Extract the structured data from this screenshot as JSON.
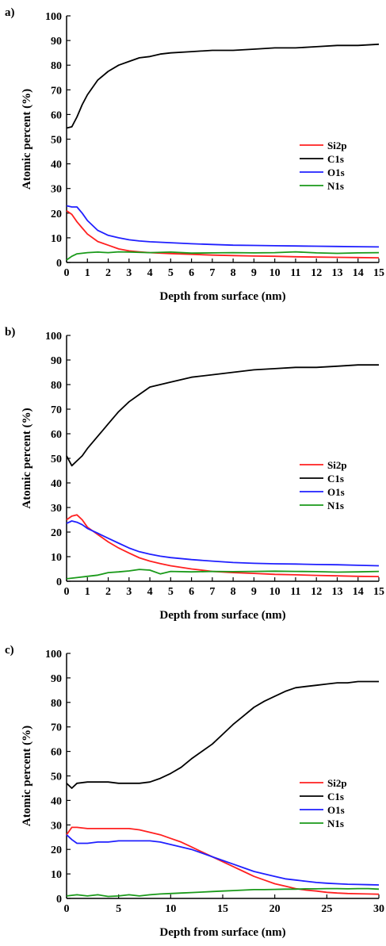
{
  "chart_data": [
    {
      "type": "line",
      "panel_label": "a)",
      "xlabel": "Depth from surface (nm)",
      "ylabel": "Atomic percent (%)",
      "xlim": [
        0,
        15
      ],
      "ylim": [
        0,
        100
      ],
      "xticks": [
        0,
        1,
        2,
        3,
        4,
        5,
        6,
        7,
        8,
        9,
        10,
        11,
        12,
        13,
        14,
        15
      ],
      "yticks": [
        0,
        10,
        20,
        30,
        40,
        50,
        60,
        70,
        80,
        90,
        100
      ],
      "grid": false,
      "legend_position": "center-right",
      "series": [
        {
          "name": "Si2p",
          "color": "#ff2020",
          "x": [
            0,
            0.25,
            0.5,
            0.75,
            1,
            1.5,
            2,
            2.5,
            3,
            3.5,
            4,
            5,
            6,
            7,
            8,
            9,
            10,
            11,
            12,
            13,
            14,
            15
          ],
          "y": [
            21,
            19.5,
            16.5,
            14,
            11.5,
            8.5,
            7,
            5.5,
            4.7,
            4.3,
            4,
            3.6,
            3.3,
            3,
            2.8,
            2.6,
            2.5,
            2.3,
            2.2,
            2.1,
            2,
            1.9
          ]
        },
        {
          "name": "C1s",
          "color": "#000000",
          "x": [
            0,
            0.25,
            0.5,
            0.75,
            1,
            1.5,
            2,
            2.5,
            3,
            3.5,
            4,
            4.5,
            5,
            6,
            7,
            8,
            9,
            10,
            11,
            12,
            13,
            14,
            15
          ],
          "y": [
            54.5,
            55,
            59,
            64,
            68,
            74,
            77.5,
            80,
            81.5,
            83,
            83.5,
            84.5,
            85,
            85.5,
            86,
            86,
            86.5,
            87,
            87,
            87.5,
            88,
            88,
            88.5
          ]
        },
        {
          "name": "O1s",
          "color": "#2020ff",
          "x": [
            0,
            0.25,
            0.5,
            0.75,
            1,
            1.5,
            2,
            2.5,
            3,
            3.5,
            4,
            5,
            6,
            7,
            8,
            9,
            10,
            11,
            12,
            13,
            14,
            15
          ],
          "y": [
            23,
            22.5,
            22.5,
            20,
            17,
            13,
            11,
            10,
            9.2,
            8.7,
            8.4,
            8,
            7.6,
            7.3,
            7,
            6.9,
            6.8,
            6.7,
            6.6,
            6.5,
            6.4,
            6.3
          ]
        },
        {
          "name": "N1s",
          "color": "#1a9a1a",
          "x": [
            0,
            0.25,
            0.5,
            1,
            1.5,
            2,
            2.5,
            3,
            4,
            5,
            6,
            7,
            8,
            9,
            10,
            11,
            12,
            13,
            14,
            15
          ],
          "y": [
            1,
            2.5,
            3.5,
            4,
            4.2,
            4,
            4.3,
            4.2,
            4,
            4.2,
            3.8,
            3.9,
            4,
            3.9,
            4,
            4.3,
            3.9,
            3.7,
            3.9,
            4
          ]
        }
      ]
    },
    {
      "type": "line",
      "panel_label": "b)",
      "xlabel": "Depth from surface (nm)",
      "ylabel": "Atomic percent (%)",
      "xlim": [
        0,
        15
      ],
      "ylim": [
        0,
        100
      ],
      "xticks": [
        0,
        1,
        2,
        3,
        4,
        5,
        6,
        7,
        8,
        9,
        10,
        11,
        12,
        13,
        14,
        15
      ],
      "yticks": [
        0,
        10,
        20,
        30,
        40,
        50,
        60,
        70,
        80,
        90,
        100
      ],
      "grid": false,
      "legend_position": "center-right",
      "series": [
        {
          "name": "Si2p",
          "color": "#ff2020",
          "x": [
            0,
            0.25,
            0.5,
            0.75,
            1,
            1.5,
            2,
            2.5,
            3,
            3.5,
            4,
            4.5,
            5,
            6,
            7,
            8,
            9,
            10,
            11,
            12,
            13,
            14,
            15
          ],
          "y": [
            25,
            26.5,
            27,
            25,
            22,
            19,
            16,
            13.5,
            11.5,
            9.5,
            8.2,
            7.2,
            6.3,
            5,
            4,
            3.5,
            3.2,
            2.8,
            2.6,
            2.4,
            2.2,
            2,
            1.9
          ]
        },
        {
          "name": "C1s",
          "color": "#000000",
          "x": [
            0,
            0.25,
            0.5,
            0.75,
            1,
            1.5,
            2,
            2.5,
            3,
            3.5,
            4,
            4.5,
            5,
            6,
            7,
            8,
            9,
            10,
            11,
            12,
            13,
            14,
            15
          ],
          "y": [
            51,
            47,
            49,
            51,
            54,
            59,
            64,
            69,
            73,
            76,
            79,
            80,
            81,
            83,
            84,
            85,
            86,
            86.5,
            87,
            87,
            87.5,
            88,
            88
          ]
        },
        {
          "name": "O1s",
          "color": "#2020ff",
          "x": [
            0,
            0.25,
            0.5,
            0.75,
            1,
            1.5,
            2,
            2.5,
            3,
            3.5,
            4,
            4.5,
            5,
            6,
            7,
            8,
            9,
            10,
            11,
            12,
            13,
            14,
            15
          ],
          "y": [
            23.5,
            24.5,
            24,
            23,
            21.5,
            19.5,
            17.5,
            15.5,
            13.5,
            12,
            11,
            10.2,
            9.6,
            8.8,
            8.2,
            7.6,
            7.3,
            7.1,
            7,
            6.8,
            6.7,
            6.5,
            6.3
          ]
        },
        {
          "name": "N1s",
          "color": "#1a9a1a",
          "x": [
            0,
            0.5,
            1,
            1.5,
            2,
            2.5,
            3,
            3.5,
            4,
            4.5,
            5,
            6,
            7,
            8,
            9,
            10,
            11,
            12,
            13,
            14,
            15
          ],
          "y": [
            1,
            1.5,
            2,
            2.5,
            3.5,
            3.8,
            4.2,
            4.8,
            4.5,
            3,
            4,
            3.8,
            4,
            3.9,
            4,
            4.1,
            4,
            3.9,
            3.7,
            3.8,
            4
          ]
        }
      ]
    },
    {
      "type": "line",
      "panel_label": "c)",
      "xlabel": "Depth from surface (nm)",
      "ylabel": "Atomic percent (%)",
      "xlim": [
        0,
        30
      ],
      "ylim": [
        0,
        100
      ],
      "xticks": [
        0,
        5,
        10,
        15,
        20,
        25,
        30
      ],
      "yticks": [
        0,
        10,
        20,
        30,
        40,
        50,
        60,
        70,
        80,
        90,
        100
      ],
      "grid": false,
      "legend_position": "center-right",
      "series": [
        {
          "name": "Si2p",
          "color": "#ff2020",
          "x": [
            0,
            0.5,
            1,
            2,
            3,
            4,
            5,
            6,
            7,
            8,
            9,
            10,
            11,
            12,
            13,
            14,
            15,
            16,
            17,
            18,
            19,
            20,
            21,
            22,
            23,
            24,
            25,
            26,
            27,
            28,
            29,
            30
          ],
          "y": [
            26,
            29,
            29,
            28.5,
            28.5,
            28.5,
            28.5,
            28.5,
            28,
            27,
            26,
            24.5,
            23,
            21,
            19,
            17,
            15,
            13,
            11,
            9,
            7.5,
            6,
            5,
            4,
            3.4,
            3,
            2.5,
            2.2,
            2,
            1.9,
            1.8,
            1.7
          ]
        },
        {
          "name": "C1s",
          "color": "#000000",
          "x": [
            0,
            0.5,
            1,
            2,
            3,
            4,
            5,
            6,
            7,
            8,
            9,
            10,
            11,
            12,
            13,
            14,
            15,
            16,
            17,
            18,
            19,
            20,
            21,
            22,
            23,
            24,
            25,
            26,
            27,
            28,
            29,
            30
          ],
          "y": [
            47,
            45,
            47,
            47.5,
            47.5,
            47.5,
            47,
            47,
            47,
            47.5,
            49,
            51,
            53.5,
            57,
            60,
            63,
            67,
            71,
            74.5,
            78,
            80.5,
            82.5,
            84.5,
            86,
            86.5,
            87,
            87.5,
            88,
            88,
            88.5,
            88.5,
            88.5
          ]
        },
        {
          "name": "O1s",
          "color": "#2020ff",
          "x": [
            0,
            0.5,
            1,
            2,
            3,
            4,
            5,
            6,
            7,
            8,
            9,
            10,
            11,
            12,
            13,
            14,
            15,
            16,
            17,
            18,
            19,
            20,
            21,
            22,
            23,
            24,
            25,
            26,
            27,
            28,
            29,
            30
          ],
          "y": [
            26,
            24,
            22.5,
            22.5,
            23,
            23,
            23.5,
            23.5,
            23.5,
            23.5,
            23,
            22,
            21,
            20,
            18.5,
            17,
            15.5,
            14,
            12.5,
            11,
            10,
            9,
            8,
            7.5,
            7,
            6.5,
            6.2,
            6,
            5.8,
            5.7,
            5.6,
            5.5
          ]
        },
        {
          "name": "N1s",
          "color": "#1a9a1a",
          "x": [
            0,
            1,
            2,
            3,
            4,
            5,
            6,
            7,
            8,
            9,
            10,
            11,
            12,
            13,
            14,
            15,
            16,
            17,
            18,
            19,
            20,
            21,
            22,
            23,
            24,
            25,
            26,
            27,
            28,
            29,
            30
          ],
          "y": [
            1,
            1.5,
            1,
            1.5,
            0.8,
            1,
            1.5,
            1,
            1.5,
            1.8,
            2,
            2.2,
            2.4,
            2.6,
            2.8,
            3,
            3.2,
            3.4,
            3.6,
            3.6,
            3.7,
            3.8,
            3.8,
            3.9,
            3.9,
            4,
            4,
            3.9,
            4,
            4,
            3.8
          ]
        }
      ]
    }
  ]
}
